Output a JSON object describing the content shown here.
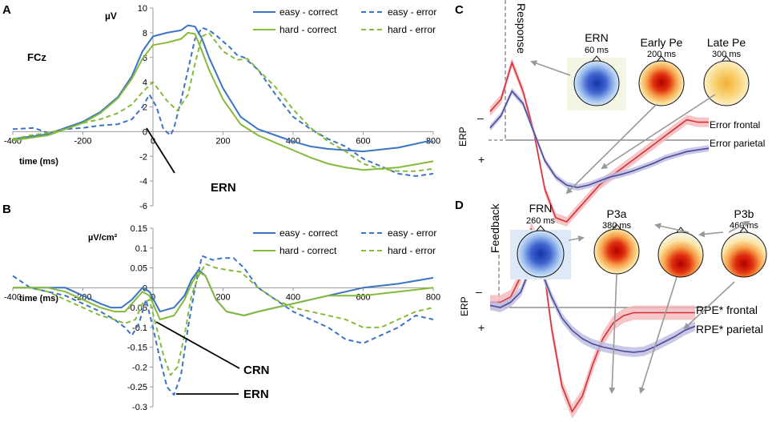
{
  "colors": {
    "easy": "#3b73c6",
    "hard": "#86ba3a",
    "red": "#d92e35",
    "redBand": "#f2b6b9",
    "blue": "#4a4a9c",
    "blueBand": "#bcbce0",
    "arrow": "#999999"
  },
  "legend": {
    "easy_correct": "easy - correct",
    "easy_error": "easy - error",
    "hard_correct": "hard - correct",
    "hard_error": "hard - error"
  },
  "chart_data": [
    {
      "id": "A",
      "type": "line",
      "panel_label": "A",
      "ylabel": "µV",
      "xlabel": "time (ms)",
      "channel": "FCz",
      "xlim": [
        -400,
        800
      ],
      "ylim": [
        -6,
        10
      ],
      "xticks": [
        -400,
        -200,
        0,
        200,
        400,
        600,
        800
      ],
      "yticks": [
        -6,
        -4,
        -2,
        0,
        2,
        4,
        6,
        8,
        10
      ],
      "annotations": [
        "ERN"
      ],
      "series": [
        {
          "name": "easy - correct",
          "color": "easy",
          "dash": false,
          "x": [
            -400,
            -350,
            -300,
            -250,
            -200,
            -150,
            -100,
            -60,
            -30,
            0,
            40,
            80,
            100,
            120,
            140,
            160,
            200,
            250,
            300,
            350,
            400,
            450,
            500,
            550,
            600,
            700,
            780,
            800
          ],
          "y": [
            -0.6,
            -0.4,
            -0.2,
            0.3,
            0.8,
            1.6,
            2.8,
            4.5,
            6.5,
            7.7,
            8.0,
            8.2,
            8.6,
            8.5,
            7.5,
            6.0,
            3.5,
            1.2,
            0.2,
            -0.3,
            -0.8,
            -1.2,
            -1.4,
            -1.5,
            -1.6,
            -1.3,
            -0.8,
            -0.8
          ]
        },
        {
          "name": "easy - error",
          "color": "easy",
          "dash": true,
          "x": [
            -400,
            -340,
            -300,
            -250,
            -200,
            -150,
            -100,
            -60,
            -30,
            -10,
            10,
            30,
            50,
            60,
            80,
            100,
            120,
            140,
            160,
            180,
            200,
            220,
            240,
            260,
            300,
            350,
            400,
            450,
            500,
            550,
            600,
            650,
            700,
            750,
            800
          ],
          "y": [
            0.2,
            0.3,
            -0.1,
            0.2,
            0.3,
            0.5,
            0.6,
            1.0,
            2.0,
            3.0,
            2.0,
            0.2,
            -0.3,
            0.3,
            2.5,
            5.0,
            7.5,
            8.4,
            8.2,
            7.8,
            7.3,
            6.8,
            6.2,
            6.0,
            5.0,
            3.0,
            1.2,
            0.2,
            -0.6,
            -1.2,
            -2.2,
            -2.8,
            -3.4,
            -3.6,
            -3.4
          ]
        },
        {
          "name": "hard - correct",
          "color": "hard",
          "dash": false,
          "x": [
            -400,
            -350,
            -300,
            -250,
            -200,
            -150,
            -100,
            -60,
            -30,
            0,
            40,
            80,
            100,
            120,
            140,
            160,
            200,
            250,
            300,
            350,
            400,
            450,
            500,
            550,
            600,
            700,
            800
          ],
          "y": [
            -0.7,
            -0.5,
            -0.3,
            0.2,
            0.7,
            1.5,
            2.7,
            4.3,
            5.9,
            7.0,
            7.2,
            7.5,
            8.0,
            7.9,
            6.5,
            5.0,
            2.6,
            0.6,
            -0.3,
            -0.9,
            -1.5,
            -2.1,
            -2.6,
            -2.9,
            -3.1,
            -2.9,
            -2.4
          ]
        },
        {
          "name": "hard - error",
          "color": "hard",
          "dash": true,
          "x": [
            -400,
            -350,
            -300,
            -250,
            -200,
            -150,
            -100,
            -60,
            -30,
            0,
            40,
            70,
            100,
            120,
            140,
            160,
            200,
            240,
            270,
            300,
            350,
            400,
            450,
            500,
            550,
            600,
            650,
            700,
            750,
            800
          ],
          "y": [
            -0.6,
            -0.3,
            -0.1,
            0.2,
            0.7,
            1.0,
            1.5,
            2.2,
            3.2,
            4.0,
            2.5,
            1.7,
            3.0,
            5.5,
            7.7,
            8.0,
            6.5,
            5.8,
            5.9,
            5.0,
            3.6,
            1.8,
            0.3,
            -0.8,
            -1.6,
            -2.6,
            -3.0,
            -3.2,
            -3.2,
            -3.0
          ]
        }
      ]
    },
    {
      "id": "B",
      "type": "line",
      "panel_label": "B",
      "ylabel": "µV/cm²",
      "xlabel": "time (ms)",
      "xlim": [
        -400,
        800
      ],
      "ylim": [
        -0.3,
        0.15
      ],
      "xticks": [
        -400,
        -200,
        0,
        200,
        400,
        600,
        800
      ],
      "yticks": [
        -0.3,
        -0.25,
        -0.2,
        -0.15,
        -0.1,
        -0.05,
        0,
        0.05,
        0.1,
        0.15
      ],
      "ytick_labels": [
        "-0.3",
        "-0.25",
        "-0.2",
        "-0.15",
        "-0.1",
        "-0.05",
        "0",
        "0.05",
        "0.1",
        "0.15"
      ],
      "annotations": [
        "CRN",
        "ERN"
      ],
      "series": [
        {
          "name": "easy - correct",
          "color": "easy",
          "dash": false,
          "x": [
            -400,
            -350,
            -300,
            -250,
            -200,
            -150,
            -120,
            -90,
            -60,
            -30,
            -10,
            20,
            60,
            90,
            110,
            130,
            150,
            180,
            210,
            260,
            300,
            400,
            500,
            600,
            700,
            800
          ],
          "y": [
            0.0,
            0.0,
            0.0,
            0.0,
            -0.02,
            -0.04,
            -0.05,
            -0.05,
            -0.03,
            0.0,
            -0.01,
            -0.06,
            -0.05,
            -0.02,
            0.02,
            0.045,
            0.03,
            -0.03,
            -0.06,
            -0.07,
            -0.06,
            -0.04,
            -0.02,
            0.0,
            0.01,
            0.025
          ]
        },
        {
          "name": "easy - error",
          "color": "easy",
          "dash": true,
          "x": [
            -400,
            -350,
            -300,
            -250,
            -200,
            -150,
            -110,
            -80,
            -60,
            -40,
            -20,
            0,
            20,
            40,
            60,
            80,
            100,
            120,
            140,
            170,
            200,
            230,
            260,
            300,
            350,
            400,
            450,
            500,
            550,
            600,
            650,
            700,
            750,
            800
          ],
          "y": [
            0.03,
            0.0,
            -0.01,
            -0.02,
            -0.04,
            -0.06,
            -0.08,
            -0.1,
            -0.12,
            -0.09,
            -0.03,
            -0.1,
            -0.18,
            -0.25,
            -0.27,
            -0.22,
            -0.1,
            0.0,
            0.08,
            0.07,
            0.075,
            0.075,
            0.05,
            0.0,
            -0.03,
            -0.06,
            -0.08,
            -0.1,
            -0.13,
            -0.14,
            -0.12,
            -0.1,
            -0.07,
            -0.08
          ]
        },
        {
          "name": "hard - correct",
          "color": "hard",
          "dash": false,
          "x": [
            -400,
            -350,
            -300,
            -250,
            -200,
            -150,
            -110,
            -80,
            -50,
            -30,
            -10,
            20,
            60,
            90,
            110,
            130,
            150,
            180,
            210,
            260,
            300,
            400,
            500,
            600,
            700,
            800
          ],
          "y": [
            0.0,
            0.0,
            0.0,
            -0.01,
            -0.03,
            -0.05,
            -0.06,
            -0.06,
            -0.03,
            -0.01,
            -0.02,
            -0.08,
            -0.07,
            -0.03,
            0.01,
            0.04,
            0.03,
            -0.03,
            -0.06,
            -0.07,
            -0.06,
            -0.04,
            -0.02,
            -0.02,
            -0.01,
            0.0
          ]
        },
        {
          "name": "hard - error",
          "color": "hard",
          "dash": true,
          "x": [
            -400,
            -350,
            -300,
            -250,
            -200,
            -150,
            -110,
            -80,
            -50,
            -30,
            -10,
            10,
            30,
            50,
            70,
            90,
            110,
            130,
            150,
            180,
            210,
            250,
            300,
            350,
            400,
            450,
            500,
            550,
            600,
            650,
            700,
            750,
            800
          ],
          "y": [
            0.0,
            0.0,
            -0.01,
            -0.03,
            -0.05,
            -0.07,
            -0.08,
            -0.09,
            -0.08,
            -0.04,
            -0.03,
            -0.1,
            -0.17,
            -0.22,
            -0.2,
            -0.12,
            -0.02,
            0.03,
            0.06,
            0.05,
            0.045,
            0.04,
            0.0,
            -0.03,
            -0.05,
            -0.06,
            -0.07,
            -0.08,
            -0.1,
            -0.1,
            -0.08,
            -0.06,
            -0.05
          ]
        }
      ]
    },
    {
      "id": "C",
      "type": "line",
      "panel_label": "C",
      "ylabel": "ERP",
      "event_label": "Response",
      "axis_minus": "–",
      "axis_plus": "+",
      "series": [
        {
          "name": "Error frontal",
          "color": "red",
          "x": [
            0,
            5,
            10,
            15,
            20,
            25,
            30,
            35,
            40,
            45,
            50,
            55,
            60,
            65,
            70,
            75,
            80,
            85,
            90,
            95,
            100
          ],
          "y": [
            0.35,
            0.5,
            0.95,
            0.6,
            0.1,
            -0.6,
            -0.95,
            -1.0,
            -0.85,
            -0.7,
            -0.55,
            -0.45,
            -0.35,
            -0.25,
            -0.15,
            -0.05,
            0.05,
            0.15,
            0.25,
            0.22,
            0.22
          ]
        },
        {
          "name": "Error parietal",
          "color": "blue",
          "x": [
            0,
            5,
            10,
            15,
            20,
            25,
            30,
            35,
            40,
            45,
            50,
            55,
            60,
            65,
            70,
            75,
            80,
            85,
            90,
            95,
            100
          ],
          "y": [
            0.15,
            0.3,
            0.6,
            0.45,
            0.1,
            -0.25,
            -0.45,
            -0.55,
            -0.58,
            -0.55,
            -0.5,
            -0.45,
            -0.42,
            -0.38,
            -0.33,
            -0.28,
            -0.22,
            -0.18,
            -0.14,
            -0.12,
            -0.1
          ]
        }
      ],
      "topos": [
        {
          "title": "ERN",
          "ms": "60 ms",
          "pattern": "blue"
        },
        {
          "title": "Early Pe",
          "ms": "200 ms",
          "pattern": "red"
        },
        {
          "title": "Late Pe",
          "ms": "300 ms",
          "pattern": "yellow"
        }
      ]
    },
    {
      "id": "D",
      "type": "line",
      "panel_label": "D",
      "ylabel": "ERP",
      "event_label": "Feedback",
      "axis_minus": "–",
      "axis_plus": "+",
      "series": [
        {
          "name": "RPE* frontal",
          "color": "red",
          "x": [
            0,
            5,
            10,
            15,
            20,
            25,
            30,
            35,
            40,
            45,
            50,
            55,
            60,
            65,
            70,
            75,
            80,
            85,
            90,
            95,
            100
          ],
          "y": [
            0.05,
            0.05,
            0.1,
            0.3,
            0.75,
            0.55,
            -0.2,
            -0.75,
            -1.0,
            -0.85,
            -0.55,
            -0.3,
            -0.15,
            -0.08,
            -0.05,
            -0.05,
            -0.05,
            -0.05,
            -0.05,
            -0.05,
            -0.05
          ]
        },
        {
          "name": "RPE* parietal",
          "color": "blue",
          "x": [
            0,
            5,
            10,
            15,
            20,
            25,
            30,
            35,
            40,
            45,
            50,
            55,
            60,
            65,
            70,
            75,
            80,
            85,
            90,
            95,
            100
          ],
          "y": [
            0.02,
            0.0,
            0.05,
            0.15,
            0.4,
            0.35,
            0.1,
            -0.1,
            -0.22,
            -0.3,
            -0.35,
            -0.38,
            -0.4,
            -0.42,
            -0.43,
            -0.42,
            -0.38,
            -0.33,
            -0.28,
            -0.22,
            -0.18
          ]
        }
      ],
      "topos": [
        {
          "title": "FRN",
          "ms": "260 ms",
          "pattern": "blue"
        },
        {
          "title": "P3a",
          "ms": "380 ms",
          "pattern": "red"
        },
        {
          "title": "",
          "ms": "",
          "pattern": "red-low"
        },
        {
          "title": "P3b",
          "ms": "460 ms",
          "pattern": "red-low"
        }
      ]
    }
  ]
}
